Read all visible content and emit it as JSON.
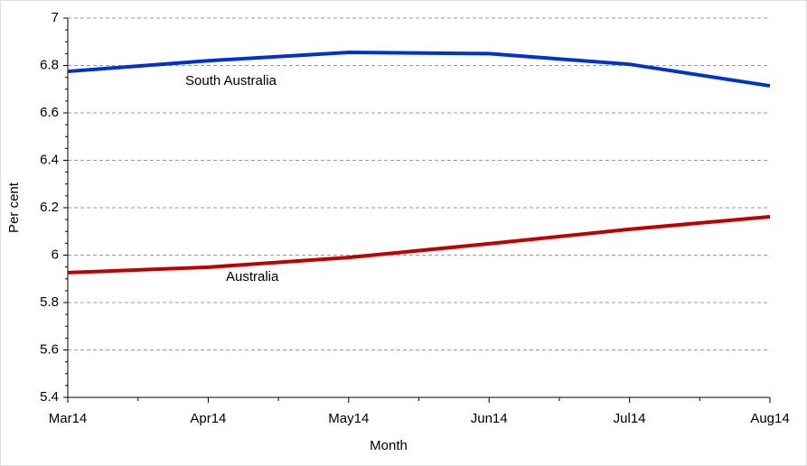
{
  "chart_data": {
    "type": "line",
    "categories": [
      "Mar14",
      "Apr14",
      "May14",
      "Jun14",
      "Jul14",
      "Aug14"
    ],
    "series": [
      {
        "name": "South Australia",
        "color": "#0033cc",
        "values": [
          6.775,
          6.82,
          6.855,
          6.85,
          6.805,
          6.714
        ]
      },
      {
        "name": "Australia",
        "color": "#c00000",
        "values": [
          5.926,
          5.949,
          5.99,
          6.048,
          6.109,
          6.162
        ]
      }
    ],
    "ylim": [
      5.4,
      7
    ],
    "yticks": [
      5.4,
      5.6,
      5.8,
      6,
      6.2,
      6.4,
      6.6,
      6.8,
      7
    ],
    "xlabel": "Month",
    "ylabel": "Per cent",
    "grid": true
  }
}
